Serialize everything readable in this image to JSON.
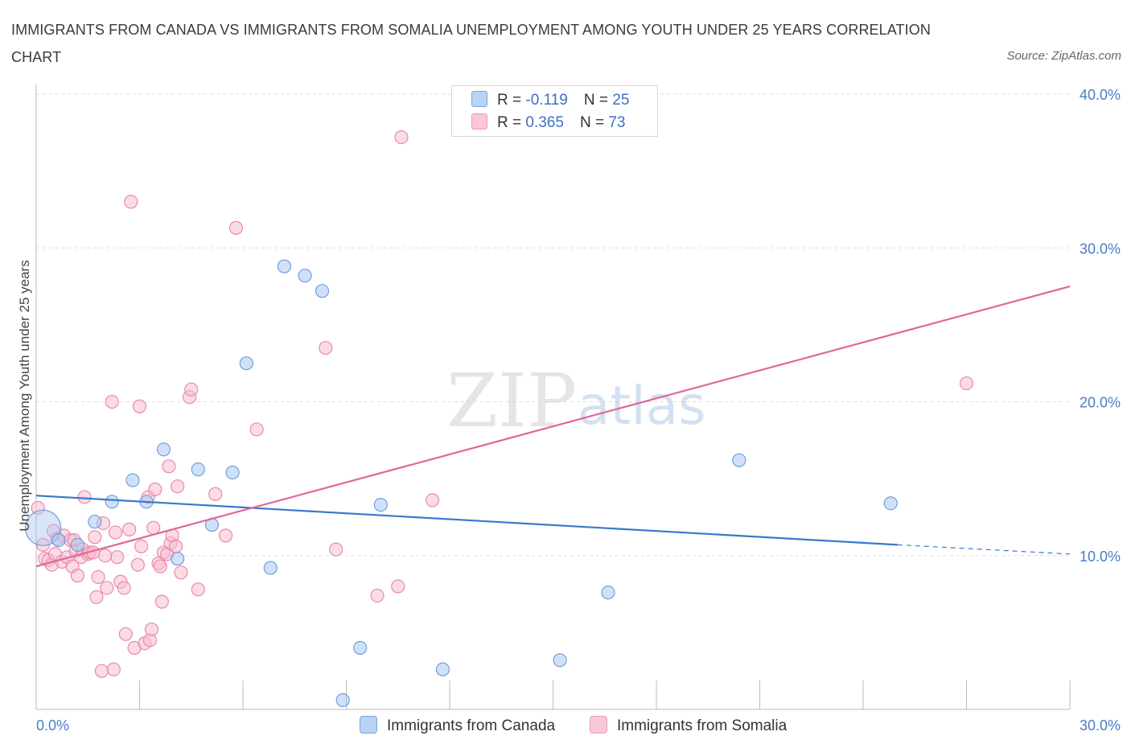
{
  "title": "IMMIGRANTS FROM CANADA VS IMMIGRANTS FROM SOMALIA UNEMPLOYMENT AMONG YOUTH UNDER 25 YEARS CORRELATION CHART",
  "source": "Source: ZipAtlas.com",
  "watermark": {
    "zip": "ZIP",
    "atlas": "atlas"
  },
  "legend": {
    "rows": [
      {
        "r_label": "R =",
        "r_value": "-0.119",
        "n_label": "N =",
        "n_value": "25"
      },
      {
        "r_label": "R =",
        "r_value": "0.365",
        "n_label": "N =",
        "n_value": "73"
      }
    ]
  },
  "colors": {
    "canada_fill": "#a9c8f0",
    "canada_stroke": "#6f9fdc",
    "canada_line": "#3b78cc",
    "somalia_fill": "#f7bed0",
    "somalia_stroke": "#e98aab",
    "somalia_line": "#e0689a",
    "grid": "#dddddd",
    "tick_text": "#4a7cc7"
  },
  "chart_data": {
    "type": "scatter",
    "title": "IMMIGRANTS FROM CANADA VS IMMIGRANTS FROM SOMALIA UNEMPLOYMENT AMONG YOUTH UNDER 25 YEARS CORRELATION CHART",
    "xlabel": "",
    "ylabel": "Unemployment Among Youth under 25 years",
    "xlim": [
      0,
      30
    ],
    "ylim": [
      0,
      40
    ],
    "x_tick_labels": [
      "0.0%",
      "30.0%"
    ],
    "y_ticks": [
      {
        "value": 10,
        "label": "10.0%"
      },
      {
        "value": 20,
        "label": "20.0%"
      },
      {
        "value": 30,
        "label": "30.0%"
      },
      {
        "value": 40,
        "label": "40.0%"
      }
    ],
    "series": [
      {
        "name": "Immigrants from Canada",
        "R": -0.119,
        "N": 25,
        "trend": {
          "x0": 0.0,
          "y0": 13.9,
          "x1": 25.0,
          "y1": 10.7,
          "dashed_to_x": 30.0,
          "dashed_to_y": 10.1
        },
        "points": [
          {
            "x": 0.2,
            "y": 11.8,
            "big": true
          },
          {
            "x": 0.65,
            "y": 11.0
          },
          {
            "x": 1.2,
            "y": 10.7
          },
          {
            "x": 1.7,
            "y": 12.2
          },
          {
            "x": 2.2,
            "y": 13.5
          },
          {
            "x": 2.8,
            "y": 14.9
          },
          {
            "x": 3.2,
            "y": 13.5
          },
          {
            "x": 3.7,
            "y": 16.9
          },
          {
            "x": 4.1,
            "y": 9.8
          },
          {
            "x": 4.7,
            "y": 15.6
          },
          {
            "x": 5.1,
            "y": 12.0
          },
          {
            "x": 5.7,
            "y": 15.4
          },
          {
            "x": 6.1,
            "y": 22.5
          },
          {
            "x": 6.8,
            "y": 9.2
          },
          {
            "x": 7.2,
            "y": 28.8
          },
          {
            "x": 7.8,
            "y": 28.2
          },
          {
            "x": 8.3,
            "y": 27.2
          },
          {
            "x": 8.9,
            "y": 0.6
          },
          {
            "x": 9.4,
            "y": 4.0
          },
          {
            "x": 10.0,
            "y": 13.3
          },
          {
            "x": 11.8,
            "y": 2.6
          },
          {
            "x": 15.2,
            "y": 3.2
          },
          {
            "x": 16.6,
            "y": 7.6
          },
          {
            "x": 20.4,
            "y": 16.2
          },
          {
            "x": 24.8,
            "y": 13.4
          }
        ]
      },
      {
        "name": "Immigrants from Somalia",
        "R": 0.365,
        "N": 73,
        "trend": {
          "x0": 0.0,
          "y0": 9.3,
          "x1": 30.0,
          "y1": 27.5
        },
        "points": [
          {
            "x": 0.05,
            "y": 13.1
          },
          {
            "x": 0.2,
            "y": 10.7
          },
          {
            "x": 0.25,
            "y": 9.8
          },
          {
            "x": 0.35,
            "y": 9.7
          },
          {
            "x": 0.45,
            "y": 9.4
          },
          {
            "x": 0.5,
            "y": 11.6
          },
          {
            "x": 0.55,
            "y": 10.1
          },
          {
            "x": 0.6,
            "y": 11.1
          },
          {
            "x": 0.75,
            "y": 9.6
          },
          {
            "x": 0.8,
            "y": 11.3
          },
          {
            "x": 0.9,
            "y": 9.9
          },
          {
            "x": 1.0,
            "y": 11.0
          },
          {
            "x": 1.05,
            "y": 9.3
          },
          {
            "x": 1.1,
            "y": 11.0
          },
          {
            "x": 1.15,
            "y": 10.3
          },
          {
            "x": 1.2,
            "y": 8.7
          },
          {
            "x": 1.3,
            "y": 9.9
          },
          {
            "x": 1.35,
            "y": 10.4
          },
          {
            "x": 1.4,
            "y": 13.8
          },
          {
            "x": 1.5,
            "y": 10.1
          },
          {
            "x": 1.55,
            "y": 10.2
          },
          {
            "x": 1.65,
            "y": 10.2
          },
          {
            "x": 1.7,
            "y": 11.2
          },
          {
            "x": 1.75,
            "y": 7.3
          },
          {
            "x": 1.8,
            "y": 8.6
          },
          {
            "x": 1.9,
            "y": 2.5
          },
          {
            "x": 1.95,
            "y": 12.1
          },
          {
            "x": 2.05,
            "y": 7.9
          },
          {
            "x": 2.2,
            "y": 20.0
          },
          {
            "x": 2.25,
            "y": 2.6
          },
          {
            "x": 2.3,
            "y": 11.5
          },
          {
            "x": 2.35,
            "y": 9.9
          },
          {
            "x": 2.45,
            "y": 8.3
          },
          {
            "x": 2.55,
            "y": 7.9
          },
          {
            "x": 2.6,
            "y": 4.9
          },
          {
            "x": 2.7,
            "y": 11.7
          },
          {
            "x": 2.75,
            "y": 33.0
          },
          {
            "x": 2.85,
            "y": 4.0
          },
          {
            "x": 2.95,
            "y": 9.4
          },
          {
            "x": 3.0,
            "y": 19.7
          },
          {
            "x": 3.05,
            "y": 10.6
          },
          {
            "x": 3.15,
            "y": 4.3
          },
          {
            "x": 3.25,
            "y": 13.8
          },
          {
            "x": 3.3,
            "y": 4.5
          },
          {
            "x": 3.35,
            "y": 5.2
          },
          {
            "x": 3.4,
            "y": 11.8
          },
          {
            "x": 3.45,
            "y": 14.3
          },
          {
            "x": 3.55,
            "y": 9.5
          },
          {
            "x": 3.6,
            "y": 9.3
          },
          {
            "x": 3.65,
            "y": 7.0
          },
          {
            "x": 3.7,
            "y": 10.2
          },
          {
            "x": 3.8,
            "y": 10.1
          },
          {
            "x": 3.85,
            "y": 15.8
          },
          {
            "x": 3.9,
            "y": 10.8
          },
          {
            "x": 3.95,
            "y": 11.3
          },
          {
            "x": 4.05,
            "y": 10.6
          },
          {
            "x": 4.1,
            "y": 14.5
          },
          {
            "x": 4.2,
            "y": 8.9
          },
          {
            "x": 4.45,
            "y": 20.3
          },
          {
            "x": 4.5,
            "y": 20.8
          },
          {
            "x": 4.7,
            "y": 7.8
          },
          {
            "x": 5.2,
            "y": 14.0
          },
          {
            "x": 5.5,
            "y": 11.3
          },
          {
            "x": 5.8,
            "y": 31.3
          },
          {
            "x": 6.4,
            "y": 18.2
          },
          {
            "x": 8.4,
            "y": 23.5
          },
          {
            "x": 8.7,
            "y": 10.4
          },
          {
            "x": 9.9,
            "y": 7.4
          },
          {
            "x": 10.5,
            "y": 8.0
          },
          {
            "x": 10.6,
            "y": 37.2
          },
          {
            "x": 11.5,
            "y": 13.6
          },
          {
            "x": 27.0,
            "y": 21.2
          },
          {
            "x": 2.0,
            "y": 10.0
          }
        ]
      }
    ]
  },
  "bottom_legend": {
    "items": [
      {
        "label": "Immigrants from Canada"
      },
      {
        "label": "Immigrants from Somalia"
      }
    ]
  }
}
